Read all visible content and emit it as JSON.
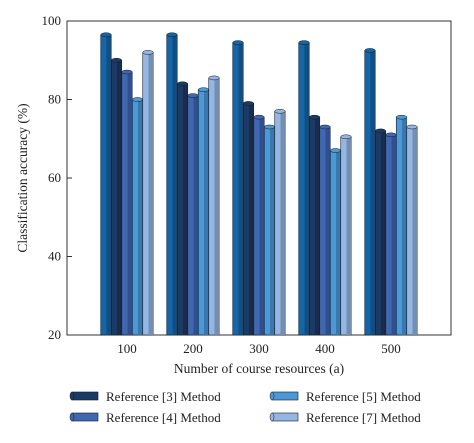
{
  "chart_data": {
    "type": "bar",
    "xlabel": "Number of course resources (a)",
    "ylabel": "Classification accuracy (%)",
    "ylim": [
      20,
      100
    ],
    "yticks": [
      "20",
      "40",
      "60",
      "80",
      "100"
    ],
    "categories": [
      "100",
      "200",
      "300",
      "400",
      "500"
    ],
    "grid": false,
    "series": [
      {
        "name": "",
        "color": "#1565a8",
        "values": [
          96.5,
          96.5,
          94.5,
          94.5,
          92.5
        ]
      },
      {
        "name": "Reference [3] Method",
        "color": "#1c3a66",
        "values": [
          90.0,
          84.0,
          79.0,
          75.5,
          72.0
        ]
      },
      {
        "name": "Reference [4] Method",
        "color": "#3f67b2",
        "values": [
          87.0,
          81.0,
          75.5,
          73.0,
          71.0
        ]
      },
      {
        "name": "Reference [5] Method",
        "color": "#4d98d6",
        "values": [
          80.0,
          82.5,
          73.0,
          67.0,
          75.5
        ]
      },
      {
        "name": "Reference [7] Method",
        "color": "#94b6e3",
        "values": [
          92.0,
          85.5,
          77.0,
          70.5,
          73.0
        ]
      }
    ],
    "legend": {
      "placement": "bottom",
      "items": [
        "Reference [3] Method",
        "Reference [4] Method",
        "Reference [5] Method",
        "Reference [7] Method"
      ]
    }
  }
}
